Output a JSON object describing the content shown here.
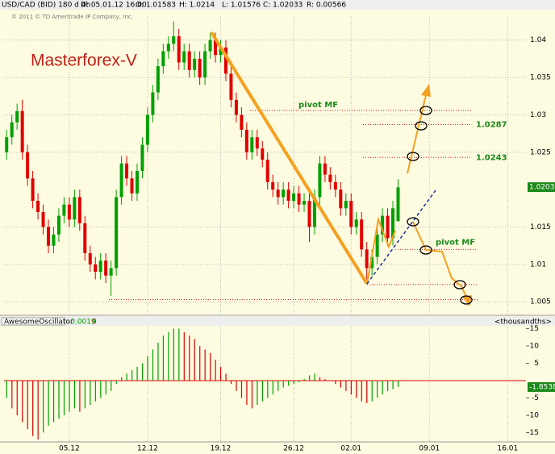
{
  "header": {
    "symbol": "USD/CAD (BID) 180 d 4h",
    "date": "D: 05.01.12 16:00",
    "open": "O: 1.01583",
    "high": "H: 1.0214",
    "low": "L: 1.01576",
    "close": "C: 1.02033",
    "range": "R: 0.00566",
    "copyright": "© 2011 © TD Ameritrade IP Company, Inc."
  },
  "chart_data": [
    {
      "type": "candlestick",
      "title": "Masterforex-V",
      "categories": [
        null,
        null,
        null,
        null,
        null,
        null,
        null,
        null,
        null,
        null,
        null,
        null,
        "05.12",
        null,
        null,
        null,
        null,
        null,
        null,
        null,
        null,
        null,
        null,
        null,
        null,
        null,
        null,
        "12.12",
        null,
        null,
        null,
        null,
        null,
        null,
        null,
        null,
        null,
        null,
        null,
        null,
        null,
        "19.12",
        null,
        null,
        null,
        null,
        null,
        null,
        null,
        null,
        null,
        null,
        null,
        null,
        null,
        "26.12",
        null,
        null,
        null,
        null,
        null,
        null,
        null,
        null,
        null,
        null,
        "02.01",
        null,
        null,
        null,
        null,
        null,
        null,
        null,
        null,
        null,
        null,
        null,
        null,
        null,
        null,
        "09.01",
        null,
        null,
        null,
        null,
        null,
        null,
        null,
        null,
        null,
        null,
        null,
        null,
        null,
        null,
        "16.01",
        null,
        null,
        null
      ],
      "open": [
        1.025,
        1.027,
        1.029,
        1.0305,
        1.025,
        1.0215,
        1.0185,
        1.017,
        1.015,
        1.0125,
        1.014,
        1.0165,
        1.018,
        1.016,
        1.019,
        1.0155,
        1.0115,
        1.01,
        1.009,
        1.0105,
        1.0085,
        1.0095,
        1.019,
        1.0235,
        1.0215,
        1.0195,
        1.0225,
        1.026,
        1.03,
        1.033,
        1.0365,
        1.0385,
        1.0395,
        1.0405,
        1.037,
        1.0385,
        1.036,
        1.0375,
        1.035,
        1.0385,
        1.04,
        1.038,
        1.039,
        1.0355,
        1.032,
        1.03,
        1.028,
        1.025,
        1.027,
        1.0255,
        1.024,
        1.021,
        1.02,
        1.019,
        1.02,
        1.0185,
        1.0195,
        1.018,
        1.0185,
        1.015,
        1.019,
        1.0235,
        1.022,
        1.021,
        1.02,
        1.0175,
        1.0185,
        1.015,
        1.016,
        1.012,
        1.0095,
        1.011,
        1.014,
        1.0165,
        1.0135,
        1.0158,
        null,
        null,
        null,
        null,
        null,
        null,
        null,
        null,
        null,
        null,
        null,
        null,
        null,
        null,
        null,
        null,
        null,
        null,
        null,
        null,
        null,
        null,
        null,
        null
      ],
      "high": [
        1.028,
        1.03,
        1.0315,
        1.032,
        1.026,
        1.0225,
        1.0195,
        1.018,
        1.016,
        1.015,
        1.0175,
        1.019,
        1.019,
        1.02,
        1.02,
        1.0165,
        1.0125,
        1.011,
        1.0115,
        1.0115,
        1.0105,
        1.02,
        1.0245,
        1.0245,
        1.0225,
        1.0235,
        1.027,
        1.031,
        1.034,
        1.0375,
        1.0395,
        1.0405,
        1.0425,
        1.0415,
        1.0395,
        1.0395,
        1.0385,
        1.0385,
        1.0395,
        1.041,
        1.041,
        1.04,
        1.04,
        1.0365,
        1.033,
        1.031,
        1.029,
        1.028,
        1.028,
        1.0265,
        1.025,
        1.022,
        1.021,
        1.021,
        1.021,
        1.0205,
        1.0205,
        1.0195,
        1.0195,
        1.02,
        1.0245,
        1.0245,
        1.023,
        1.022,
        1.021,
        1.0195,
        1.0195,
        1.017,
        1.017,
        1.013,
        1.012,
        1.015,
        1.0175,
        1.0175,
        1.0185,
        1.0214,
        null,
        null,
        null,
        null,
        null,
        null,
        null,
        null,
        null,
        null,
        null,
        null,
        null,
        null,
        null,
        null,
        null,
        null,
        null,
        null,
        null,
        null,
        null,
        null
      ],
      "low": [
        1.024,
        1.026,
        1.028,
        1.024,
        1.0205,
        1.0175,
        1.016,
        1.014,
        1.0115,
        1.0115,
        1.013,
        1.0155,
        1.015,
        1.015,
        1.0145,
        1.0105,
        1.009,
        1.008,
        1.008,
        1.0075,
        1.0058,
        1.0085,
        1.018,
        1.0205,
        1.0185,
        1.0185,
        1.0215,
        1.025,
        1.029,
        1.032,
        1.0355,
        1.0375,
        1.0385,
        1.036,
        1.036,
        1.035,
        1.035,
        1.034,
        1.034,
        1.0375,
        1.037,
        1.037,
        1.0345,
        1.031,
        1.029,
        1.027,
        1.024,
        1.024,
        1.0245,
        1.023,
        1.02,
        1.019,
        1.018,
        1.018,
        1.0175,
        1.0175,
        1.017,
        1.017,
        1.013,
        1.014,
        1.018,
        1.021,
        1.02,
        1.019,
        1.0165,
        1.0165,
        1.014,
        1.014,
        1.011,
        1.008,
        1.0085,
        1.01,
        1.013,
        1.0125,
        1.0125,
        1.0157,
        null,
        null,
        null,
        null,
        null,
        null,
        null,
        null,
        null,
        null,
        null,
        null,
        null,
        null,
        null,
        null,
        null,
        null,
        null,
        null,
        null,
        null,
        null,
        null
      ],
      "close": [
        1.027,
        1.029,
        1.0305,
        1.025,
        1.0215,
        1.0185,
        1.017,
        1.015,
        1.0125,
        1.014,
        1.0165,
        1.018,
        1.016,
        1.019,
        1.0155,
        1.0115,
        1.01,
        1.009,
        1.0105,
        1.0085,
        1.0095,
        1.019,
        1.0235,
        1.0215,
        1.0195,
        1.0225,
        1.026,
        1.03,
        1.033,
        1.0365,
        1.0385,
        1.0395,
        1.0405,
        1.037,
        1.0385,
        1.036,
        1.0375,
        1.035,
        1.0385,
        1.04,
        1.038,
        1.039,
        1.0355,
        1.032,
        1.03,
        1.028,
        1.025,
        1.027,
        1.0255,
        1.024,
        1.021,
        1.02,
        1.019,
        1.02,
        1.0185,
        1.0195,
        1.018,
        1.0185,
        1.015,
        1.019,
        1.0235,
        1.022,
        1.021,
        1.02,
        1.0175,
        1.0185,
        1.015,
        1.016,
        1.012,
        1.0095,
        1.011,
        1.014,
        1.0165,
        1.0135,
        1.0175,
        1.0203,
        null,
        null,
        null,
        null,
        null,
        null,
        null,
        null,
        null,
        null,
        null,
        null,
        null,
        null,
        null,
        null,
        null,
        null,
        null,
        null,
        null,
        null,
        null,
        null
      ],
      "up_color": "#00a000",
      "down_color": "#e00000",
      "ylim": [
        1.0033,
        1.0432
      ],
      "yticks": [
        1.005,
        1.01,
        1.015,
        1.025,
        1.03,
        1.035,
        1.04
      ],
      "grid": true,
      "last_price": 1.02033,
      "levels": [
        {
          "value": 1.0306,
          "label": "pivot MF"
        },
        {
          "value": 1.0287
        },
        {
          "value": 1.0243
        },
        {
          "value": 1.012,
          "label": "pivot MF"
        },
        {
          "value": 1.0073
        },
        {
          "value": 1.0053
        }
      ]
    },
    {
      "type": "bar",
      "title": "AwesomeOscillator",
      "value_text": "-0.0019",
      "zero_text": "0",
      "unit_label": "<thousandths>",
      "values": [
        -5,
        -8,
        -10,
        -12,
        -14,
        -16,
        -17,
        -15,
        -13,
        -12,
        -11,
        -10,
        -9,
        -8,
        -9,
        -8,
        -7,
        -6,
        -5,
        -4,
        -3,
        -1,
        1,
        2,
        3,
        4,
        5,
        7,
        9,
        11,
        13,
        14,
        15,
        15,
        14,
        13,
        12,
        10,
        9,
        8,
        6,
        4,
        2,
        -1,
        -3,
        -5,
        -7,
        -8,
        -7,
        -6,
        -5,
        -4,
        -3,
        -2,
        -1.5,
        -1,
        -0.5,
        0.5,
        1.5,
        2,
        1,
        0.5,
        0,
        -1,
        -2,
        -3,
        -4,
        -5,
        -6,
        -6.5,
        -6,
        -5,
        -4,
        -3,
        -2.5,
        -1.8538,
        null,
        null,
        null,
        null,
        null,
        null,
        null,
        null,
        null,
        null,
        null,
        null,
        null,
        null,
        null,
        null,
        null,
        null,
        null,
        null,
        null,
        null,
        null,
        null
      ],
      "up_color": "#00a000",
      "down_color": "#e00000",
      "ylim": [
        -17.7,
        15.6
      ],
      "yticks": [
        -15,
        -10,
        -5,
        5,
        10,
        15
      ],
      "last_value": -1.8538
    }
  ]
}
